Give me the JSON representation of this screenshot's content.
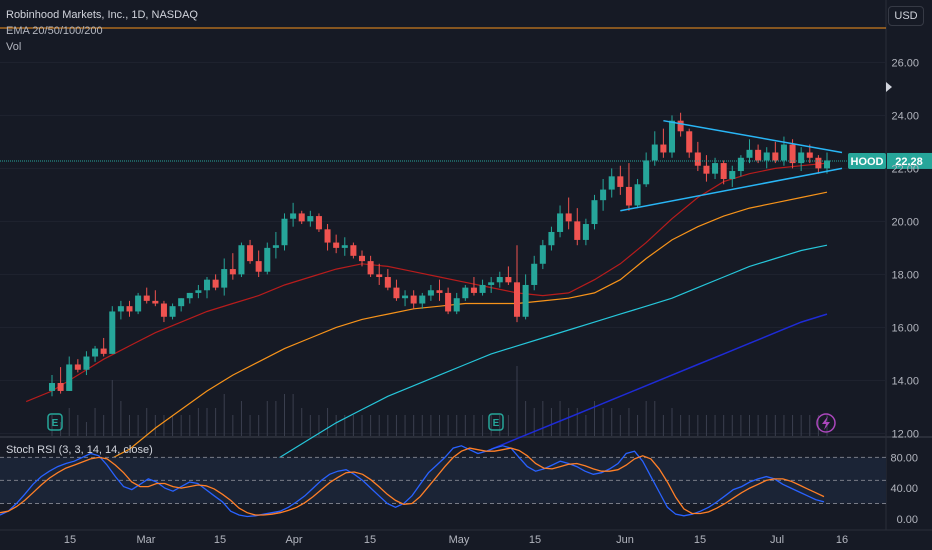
{
  "header": {
    "symbol_line": "Robinhood Markets, Inc., 1D, NASDAQ",
    "indicator_line": "EMA 20/50/100/200",
    "volume_label": "Vol"
  },
  "currency_button": "USD",
  "rsi_title": "Stoch RSI (3, 3, 14, 14, close)",
  "ticker_badge": {
    "symbol": "HOOD",
    "price": "22.28"
  },
  "colors": {
    "background": "#161a25",
    "up": "#26a69a",
    "down": "#ef5350",
    "ema20": "#b71c1c",
    "ema50": "#f7931a",
    "ema100": "#26c6da",
    "ema200": "#1e2bd6",
    "trendline": "#29b6f6",
    "k_line": "#2962ff",
    "d_line": "#ff7f27"
  },
  "chart_data": {
    "type": "candlestick",
    "price_axis": {
      "ticks": [
        "12.00",
        "14.00",
        "16.00",
        "18.00",
        "20.00",
        "22.00",
        "24.00",
        "26.00"
      ],
      "ylim": [
        11.9,
        27.6
      ]
    },
    "rsi_axis": {
      "ticks": [
        "0.00",
        "40.00",
        "80.00"
      ],
      "levels": [
        20,
        50,
        80
      ],
      "ylim": [
        -8,
        100
      ]
    },
    "x_ticks": [
      "15",
      "Mar",
      "15",
      "Apr",
      "15",
      "May",
      "15",
      "Jun",
      "15",
      "Jul",
      "16"
    ],
    "last_price": 22.28,
    "resistance_level": 27.3,
    "candles": [
      [
        13.6,
        14.2,
        13.4,
        13.9
      ],
      [
        13.9,
        14.5,
        13.5,
        13.6
      ],
      [
        13.6,
        14.9,
        13.6,
        14.6
      ],
      [
        14.6,
        14.8,
        14.3,
        14.4
      ],
      [
        14.4,
        15.1,
        14.2,
        14.9
      ],
      [
        14.9,
        15.3,
        14.7,
        15.2
      ],
      [
        15.2,
        15.6,
        14.9,
        15.0
      ],
      [
        15.0,
        16.8,
        15.0,
        16.6
      ],
      [
        16.6,
        17.0,
        16.3,
        16.8
      ],
      [
        16.8,
        17.0,
        16.4,
        16.6
      ],
      [
        16.6,
        17.3,
        16.5,
        17.2
      ],
      [
        17.2,
        17.5,
        16.9,
        17.0
      ],
      [
        17.0,
        17.4,
        16.8,
        16.9
      ],
      [
        16.9,
        17.0,
        16.2,
        16.4
      ],
      [
        16.4,
        16.9,
        16.3,
        16.8
      ],
      [
        16.8,
        17.1,
        16.6,
        17.1
      ],
      [
        17.1,
        17.3,
        16.9,
        17.3
      ],
      [
        17.3,
        17.6,
        17.1,
        17.4
      ],
      [
        17.4,
        17.9,
        17.1,
        17.8
      ],
      [
        17.8,
        18.0,
        17.4,
        17.5
      ],
      [
        17.5,
        18.6,
        17.2,
        18.2
      ],
      [
        18.2,
        18.8,
        17.8,
        18.0
      ],
      [
        18.0,
        19.2,
        17.9,
        19.1
      ],
      [
        19.1,
        19.3,
        18.4,
        18.5
      ],
      [
        18.5,
        18.9,
        17.9,
        18.1
      ],
      [
        18.1,
        19.2,
        18.0,
        19.0
      ],
      [
        19.0,
        19.6,
        18.6,
        19.1
      ],
      [
        19.1,
        20.3,
        18.9,
        20.1
      ],
      [
        20.1,
        20.7,
        19.8,
        20.3
      ],
      [
        20.3,
        20.4,
        19.9,
        20.0
      ],
      [
        20.0,
        20.4,
        19.8,
        20.2
      ],
      [
        20.2,
        20.3,
        19.6,
        19.7
      ],
      [
        19.7,
        19.9,
        18.9,
        19.2
      ],
      [
        19.2,
        19.5,
        18.8,
        19.0
      ],
      [
        19.0,
        19.4,
        18.7,
        19.1
      ],
      [
        19.1,
        19.2,
        18.6,
        18.7
      ],
      [
        18.7,
        18.9,
        18.3,
        18.5
      ],
      [
        18.5,
        18.7,
        17.9,
        18.0
      ],
      [
        18.0,
        18.4,
        17.6,
        17.9
      ],
      [
        17.9,
        18.2,
        17.4,
        17.5
      ],
      [
        17.5,
        17.8,
        17.0,
        17.1
      ],
      [
        17.1,
        17.4,
        16.8,
        17.2
      ],
      [
        17.2,
        17.4,
        16.7,
        16.9
      ],
      [
        16.9,
        17.3,
        16.7,
        17.2
      ],
      [
        17.2,
        17.6,
        17.0,
        17.4
      ],
      [
        17.4,
        17.8,
        17.0,
        17.3
      ],
      [
        17.3,
        17.5,
        16.5,
        16.6
      ],
      [
        16.6,
        17.3,
        16.5,
        17.1
      ],
      [
        17.1,
        17.6,
        17.0,
        17.5
      ],
      [
        17.5,
        17.9,
        17.2,
        17.3
      ],
      [
        17.3,
        17.8,
        17.2,
        17.6
      ],
      [
        17.6,
        17.9,
        17.3,
        17.7
      ],
      [
        17.7,
        18.1,
        17.5,
        17.9
      ],
      [
        17.9,
        18.3,
        17.6,
        17.7
      ],
      [
        17.7,
        19.1,
        16.2,
        16.4
      ],
      [
        16.4,
        18.0,
        16.3,
        17.6
      ],
      [
        17.6,
        18.7,
        17.4,
        18.4
      ],
      [
        18.4,
        19.3,
        18.2,
        19.1
      ],
      [
        19.1,
        19.8,
        18.9,
        19.6
      ],
      [
        19.6,
        20.6,
        19.4,
        20.3
      ],
      [
        20.3,
        20.9,
        19.7,
        20.0
      ],
      [
        20.0,
        20.5,
        19.1,
        19.3
      ],
      [
        19.3,
        20.1,
        19.1,
        19.9
      ],
      [
        19.9,
        21.0,
        19.7,
        20.8
      ],
      [
        20.8,
        21.6,
        20.4,
        21.2
      ],
      [
        21.2,
        22.0,
        20.9,
        21.7
      ],
      [
        21.7,
        22.1,
        21.0,
        21.3
      ],
      [
        21.3,
        22.2,
        20.4,
        20.6
      ],
      [
        20.6,
        21.6,
        20.5,
        21.4
      ],
      [
        21.4,
        22.6,
        21.3,
        22.3
      ],
      [
        22.3,
        23.4,
        22.1,
        22.9
      ],
      [
        22.9,
        23.5,
        22.4,
        22.6
      ],
      [
        22.6,
        24.0,
        22.4,
        23.8
      ],
      [
        23.8,
        24.1,
        23.2,
        23.4
      ],
      [
        23.4,
        23.5,
        22.4,
        22.6
      ],
      [
        22.6,
        23.0,
        21.9,
        22.1
      ],
      [
        22.1,
        22.5,
        21.5,
        21.8
      ],
      [
        21.8,
        22.4,
        21.6,
        22.2
      ],
      [
        22.2,
        22.3,
        21.4,
        21.6
      ],
      [
        21.6,
        22.1,
        21.3,
        21.9
      ],
      [
        21.9,
        22.5,
        21.7,
        22.4
      ],
      [
        22.4,
        23.1,
        22.2,
        22.7
      ],
      [
        22.7,
        22.9,
        22.2,
        22.3
      ],
      [
        22.3,
        22.8,
        22.0,
        22.6
      ],
      [
        22.6,
        23.0,
        22.2,
        22.3
      ],
      [
        22.3,
        23.2,
        22.1,
        22.9
      ],
      [
        22.9,
        23.1,
        22.0,
        22.2
      ],
      [
        22.2,
        22.8,
        21.9,
        22.6
      ],
      [
        22.6,
        22.9,
        22.2,
        22.4
      ],
      [
        22.4,
        22.5,
        21.8,
        22.0
      ],
      [
        22.0,
        22.6,
        21.8,
        22.3
      ]
    ],
    "volume": [
      3,
      2,
      4,
      3,
      2,
      4,
      3,
      8,
      5,
      3,
      3,
      4,
      3,
      3,
      3,
      3,
      3,
      4,
      4,
      4,
      6,
      3,
      5,
      3,
      3,
      5,
      5,
      6,
      6,
      4,
      3,
      3,
      4,
      3,
      3,
      3,
      3,
      3,
      3,
      3,
      3,
      3,
      3,
      3,
      3,
      3,
      3,
      3,
      3,
      3,
      3,
      3,
      3,
      3,
      10,
      5,
      4,
      5,
      4,
      5,
      4,
      4,
      3,
      5,
      4,
      4,
      3,
      4,
      3,
      5,
      5,
      3,
      4,
      3,
      3,
      3,
      3,
      3,
      3,
      3,
      3,
      3,
      3,
      3,
      3,
      3,
      3,
      3,
      3,
      3,
      3
    ],
    "ema20": [
      13.2,
      13.6,
      14.2,
      14.8,
      15.3,
      15.8,
      16.2,
      16.6,
      16.9,
      17.2,
      17.6,
      17.9,
      18.2,
      18.4,
      18.3,
      18.1,
      17.9,
      17.7,
      17.5,
      17.3,
      17.2,
      17.3,
      17.8,
      18.4,
      19.2,
      20.1,
      20.9,
      21.5,
      21.8,
      22.0,
      22.1,
      22.2
    ],
    "ema50": [
      10.9,
      11.4,
      12.2,
      12.9,
      13.6,
      14.2,
      14.7,
      15.2,
      15.6,
      16.0,
      16.3,
      16.5,
      16.7,
      16.8,
      16.9,
      16.9,
      16.9,
      17.0,
      17.1,
      17.3,
      17.8,
      18.6,
      19.3,
      19.8,
      20.2,
      20.5,
      20.7,
      20.9,
      21.1
    ],
    "ema100": [
      10.6,
      11.2,
      11.8,
      12.4,
      12.9,
      13.4,
      13.8,
      14.2,
      14.6,
      15.0,
      15.3,
      15.6,
      15.9,
      16.2,
      16.5,
      16.8,
      17.1,
      17.5,
      17.9,
      18.3,
      18.6,
      18.9,
      19.1
    ],
    "ema200": [
      11.4,
      11.8,
      12.2,
      12.6,
      13.0,
      13.4,
      13.8,
      14.2,
      14.6,
      15.0,
      15.4,
      15.8,
      16.2,
      16.5
    ],
    "trendlines": [
      {
        "from": [
          71,
          23.8
        ],
        "to": [
          90,
          22.6
        ]
      },
      {
        "from": [
          66,
          20.4
        ],
        "to": [
          90,
          22.0
        ]
      }
    ],
    "stoch_k": [
      5,
      10,
      20,
      32,
      45,
      55,
      62,
      68,
      72,
      75,
      80,
      85,
      82,
      70,
      55,
      42,
      38,
      45,
      52,
      48,
      40,
      36,
      42,
      48,
      46,
      38,
      30,
      22,
      10,
      5,
      3,
      4,
      6,
      8,
      10,
      15,
      22,
      30,
      40,
      50,
      58,
      62,
      64,
      58,
      50,
      40,
      30,
      20,
      15,
      20,
      30,
      45,
      60,
      70,
      80,
      92,
      95,
      90,
      85,
      88,
      92,
      95,
      92,
      80,
      68,
      62,
      65,
      70,
      75,
      72,
      68,
      62,
      58,
      60,
      65,
      72,
      85,
      88,
      75,
      55,
      35,
      15,
      6,
      4,
      6,
      10,
      15,
      22,
      30,
      38,
      42,
      48,
      52,
      55,
      52,
      45,
      40,
      35,
      30,
      25,
      22
    ],
    "stoch_d": [
      8,
      10,
      16,
      24,
      34,
      44,
      53,
      60,
      66,
      70,
      74,
      78,
      80,
      78,
      70,
      60,
      48,
      42,
      42,
      46,
      46,
      42,
      40,
      42,
      44,
      43,
      39,
      32,
      24,
      14,
      8,
      5,
      5,
      6,
      8,
      11,
      15,
      21,
      29,
      38,
      47,
      54,
      60,
      61,
      58,
      51,
      42,
      32,
      24,
      19,
      20,
      29,
      42,
      55,
      68,
      80,
      88,
      92,
      90,
      88,
      88,
      90,
      92,
      89,
      82,
      72,
      66,
      65,
      68,
      71,
      72,
      69,
      65,
      62,
      62,
      64,
      70,
      78,
      82,
      78,
      65,
      48,
      28,
      13,
      7,
      7,
      9,
      14,
      20,
      27,
      34,
      40,
      45,
      50,
      52,
      52,
      49,
      44,
      39,
      34,
      29
    ]
  }
}
